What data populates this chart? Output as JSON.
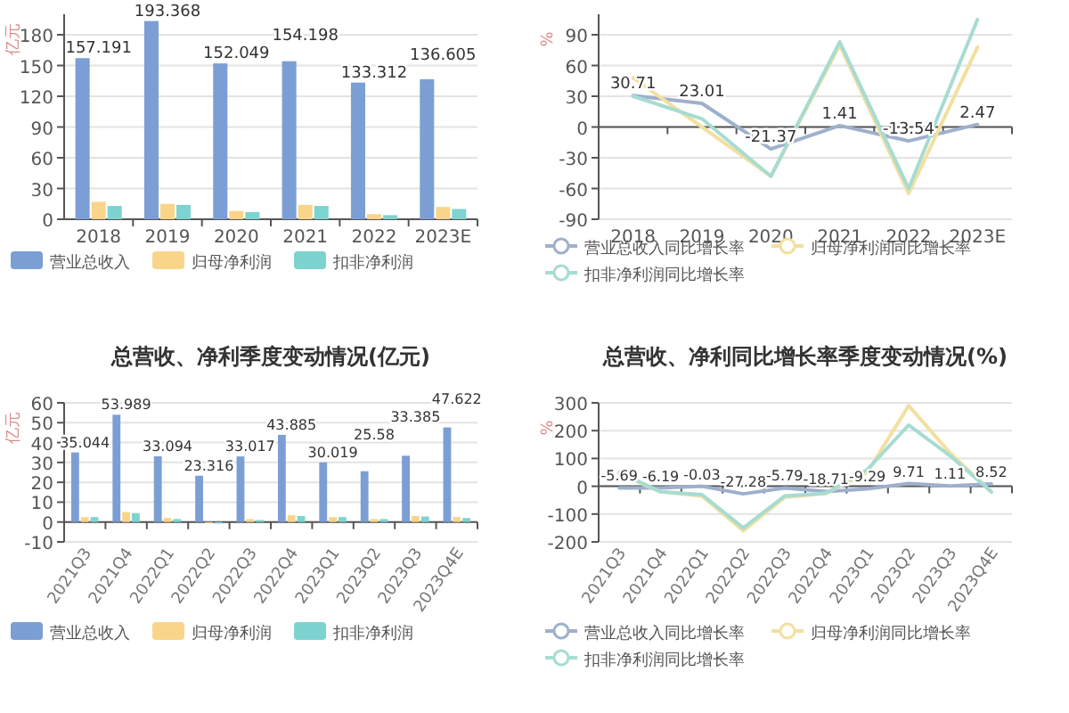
{
  "chart_data": [
    {
      "type": "bar",
      "ylabel": "亿元",
      "categories": [
        "2018",
        "2019",
        "2020",
        "2021",
        "2022",
        "2023E"
      ],
      "series": [
        {
          "name": "营业总收入",
          "color": "#7b9fd4",
          "values": [
            157.191,
            193.368,
            152.049,
            154.198,
            133.312,
            136.605
          ],
          "value_labels": [
            "157.191",
            "193.368",
            "152.049",
            "154.198",
            "133.312",
            "136.605"
          ]
        },
        {
          "name": "归母净利润",
          "color": "#f9d58a",
          "values": [
            17,
            15,
            8,
            14,
            5,
            12
          ]
        },
        {
          "name": "扣非净利润",
          "color": "#7dd3d0",
          "values": [
            13,
            14,
            7,
            13,
            4,
            10
          ]
        }
      ],
      "ylim": [
        0,
        200
      ],
      "yticks": [
        0,
        30,
        60,
        90,
        120,
        150,
        180
      ],
      "grid": "y",
      "legend": "bottom"
    },
    {
      "type": "line",
      "ylabel": "%",
      "categories": [
        "2018",
        "2019",
        "2020",
        "2021",
        "2022",
        "2023E"
      ],
      "series": [
        {
          "name": "营业总收入同比增长率",
          "color": "#9fb0cc",
          "values": [
            30.71,
            23.01,
            -21.37,
            1.41,
            -13.54,
            2.47
          ],
          "value_labels": [
            "30.71",
            "23.01",
            "-21.37",
            "1.41",
            "-13.54",
            "2.47"
          ]
        },
        {
          "name": "归母净利润同比增长率",
          "color": "#f3dfa0",
          "values": [
            48,
            0,
            -48,
            80,
            -65,
            78
          ]
        },
        {
          "name": "扣非净利润同比增长率",
          "color": "#a6dcd2",
          "values": [
            30,
            8,
            -48,
            83,
            -60,
            105
          ]
        }
      ],
      "ylim": [
        -90,
        110
      ],
      "yticks": [
        -90,
        -60,
        -30,
        0,
        30,
        60,
        90
      ],
      "grid": "y",
      "legend": "bottom"
    },
    {
      "type": "bar",
      "title": "总营收、净利季度变动情况(亿元)",
      "ylabel": "亿元",
      "categories": [
        "2021Q3",
        "2021Q4",
        "2022Q1",
        "2022Q2",
        "2022Q3",
        "2022Q4",
        "2023Q1",
        "2023Q2",
        "2023Q3",
        "2023Q4E"
      ],
      "series": [
        {
          "name": "营业总收入",
          "color": "#7b9fd4",
          "values": [
            35.044,
            53.989,
            33.094,
            23.316,
            33.017,
            43.885,
            30.019,
            25.58,
            33.385,
            47.622
          ],
          "value_labels": [
            "35.044",
            "53.989",
            "33.094",
            "23.316",
            "33.017",
            "43.885",
            "30.019",
            "25.58",
            "33.385",
            "47.622"
          ]
        },
        {
          "name": "归母净利润",
          "color": "#f9d58a",
          "values": [
            2.5,
            5,
            2,
            -0.5,
            1.5,
            3.5,
            2.5,
            1.5,
            3,
            2.5
          ]
        },
        {
          "name": "扣非净利润",
          "color": "#7dd3d0",
          "values": [
            2.5,
            4.5,
            1.5,
            -0.8,
            1,
            3,
            2.5,
            1.5,
            2.8,
            2
          ]
        }
      ],
      "ylim": [
        -10,
        60
      ],
      "yticks": [
        -10,
        0,
        10,
        20,
        30,
        40,
        50,
        60
      ],
      "grid": "y",
      "legend": "bottom"
    },
    {
      "type": "line",
      "title": "总营收、净利同比增长率季度变动情况(%)",
      "ylabel": "%",
      "categories": [
        "2021Q3",
        "2021Q4",
        "2022Q1",
        "2022Q2",
        "2022Q3",
        "2022Q4",
        "2023Q1",
        "2023Q2",
        "2023Q3",
        "2023Q4E"
      ],
      "series": [
        {
          "name": "营业总收入同比增长率",
          "color": "#9fb0cc",
          "values": [
            -5.69,
            -6.19,
            -0.03,
            -27.28,
            -5.79,
            -18.71,
            -9.29,
            9.71,
            1.11,
            8.52
          ],
          "value_labels": [
            "-5.69",
            "-6.19",
            "-0.03",
            "-27.28",
            "-5.79",
            "-18.71",
            "-9.29",
            "9.71",
            "1.11",
            "8.52"
          ]
        },
        {
          "name": "归母净利润同比增长率",
          "color": "#f3dfa0",
          "values": [
            45,
            -20,
            -35,
            -160,
            -40,
            -25,
            50,
            290,
            120,
            -20
          ]
        },
        {
          "name": "扣非净利润同比增长率",
          "color": "#a6dcd2",
          "values": [
            50,
            -20,
            -30,
            -150,
            -35,
            -25,
            60,
            220,
            110,
            -20
          ]
        }
      ],
      "ylim": [
        -200,
        300
      ],
      "yticks": [
        -200,
        -100,
        0,
        100,
        200,
        300
      ],
      "grid": "y",
      "legend": "bottom"
    }
  ]
}
